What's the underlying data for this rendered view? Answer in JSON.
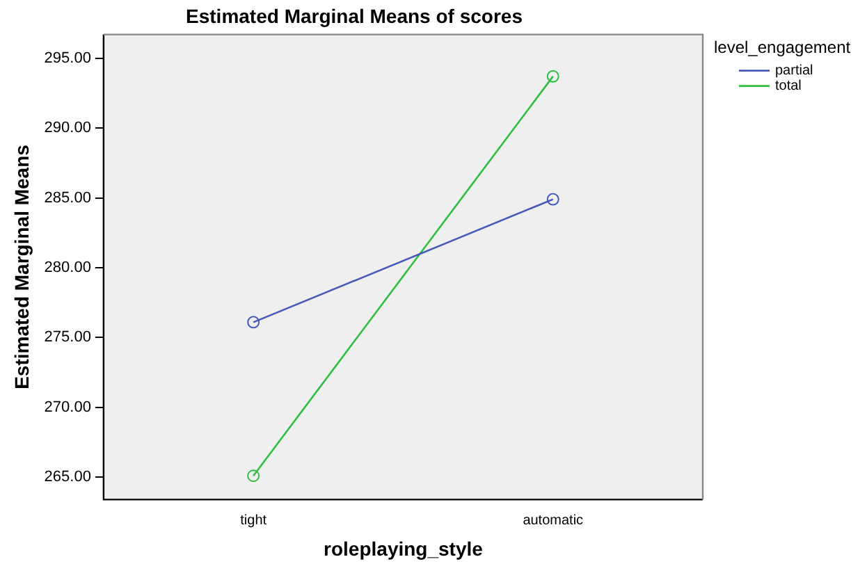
{
  "chart_data": {
    "type": "line",
    "title": "Estimated Marginal Means of scores",
    "xlabel": "roleplaying_style",
    "ylabel": "Estimated Marginal Means",
    "legend_title": "level_engagement",
    "categories": [
      "tight",
      "automatic"
    ],
    "series": [
      {
        "name": "partial",
        "color": "#4659b8",
        "values": [
          276.1,
          284.9
        ]
      },
      {
        "name": "total",
        "color": "#2fbf3f",
        "values": [
          265.1,
          293.7
        ]
      }
    ],
    "ylim": [
      263.4,
      296.7
    ],
    "yticks": [
      {
        "value": 265,
        "label": "265.00"
      },
      {
        "value": 270,
        "label": "270.00"
      },
      {
        "value": 275,
        "label": "275.00"
      },
      {
        "value": 280,
        "label": "280.00"
      },
      {
        "value": 285,
        "label": "285.00"
      },
      {
        "value": 290,
        "label": "290.00"
      },
      {
        "value": 295,
        "label": "295.00"
      }
    ],
    "grid": false,
    "legend": "top right",
    "marker": "circle",
    "line_style": "solid"
  }
}
